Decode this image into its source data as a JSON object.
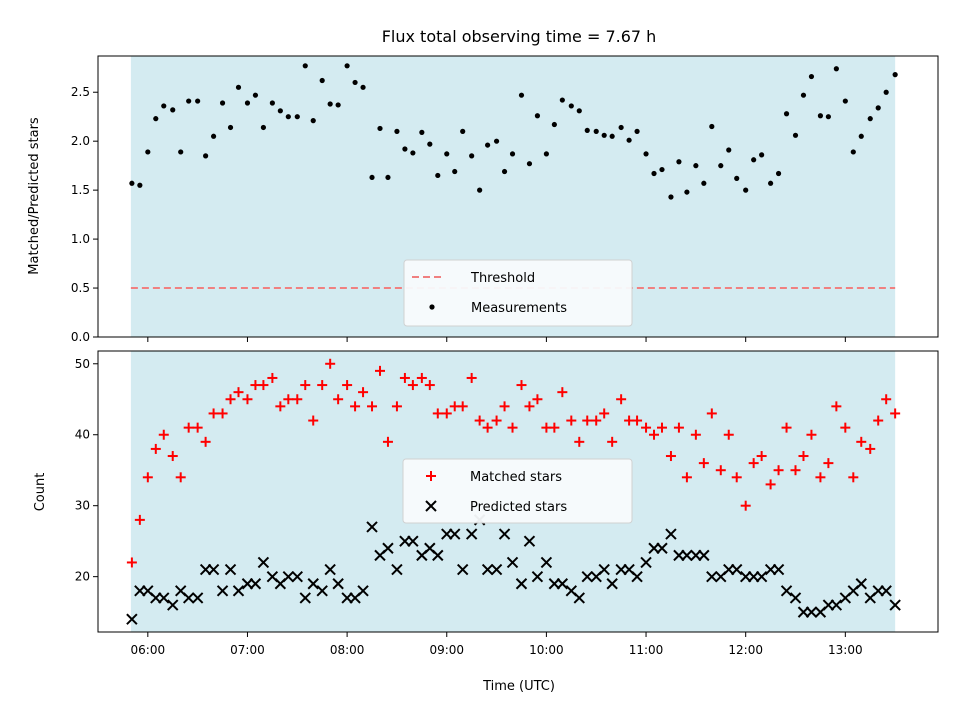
{
  "chart_data": [
    {
      "type": "scatter",
      "title": "Flux total observing time = 7.67 h",
      "ylabel": "Matched/Predicted stars",
      "xlabel": "",
      "x_ticks": [
        "06:00",
        "07:00",
        "08:00",
        "09:00",
        "10:00",
        "11:00",
        "12:00",
        "13:00"
      ],
      "y_ticks": [
        "0.0",
        "0.5",
        "1.0",
        "1.5",
        "2.0",
        "2.5"
      ],
      "ylim": [
        0,
        2.87
      ],
      "xlim_hours": [
        5.5,
        13.93
      ],
      "shaded_span_hours": [
        5.83,
        13.5
      ],
      "shade_color": "#d4ebf1",
      "threshold": {
        "name": "Threshold",
        "y": 0.5,
        "color": "#f08080"
      },
      "legend_placement": "lower-center",
      "series": [
        {
          "name": "Measurements",
          "color": "#000000",
          "x": [
            5.84,
            5.92,
            6.0,
            6.08,
            6.16,
            6.25,
            6.33,
            6.41,
            6.5,
            6.58,
            6.66,
            6.75,
            6.83,
            6.91,
            7.0,
            7.08,
            7.16,
            7.25,
            7.33,
            7.41,
            7.5,
            7.58,
            7.66,
            7.75,
            7.83,
            7.91,
            8.0,
            8.08,
            8.16,
            8.25,
            8.33,
            8.41,
            8.5,
            8.58,
            8.66,
            8.75,
            8.83,
            8.91,
            9.0,
            9.08,
            9.16,
            9.25,
            9.33,
            9.41,
            9.5,
            9.58,
            9.66,
            9.75,
            9.83,
            9.91,
            10.0,
            10.08,
            10.16,
            10.25,
            10.33,
            10.41,
            10.5,
            10.58,
            10.66,
            10.75,
            10.83,
            10.91,
            11.0,
            11.08,
            11.16,
            11.25,
            11.33,
            11.41,
            11.5,
            11.58,
            11.66,
            11.75,
            11.83,
            11.91,
            12.0,
            12.08,
            12.16,
            12.25,
            12.33,
            12.41,
            12.5,
            12.58,
            12.66,
            12.75,
            12.83,
            12.91,
            13.0,
            13.08,
            13.16,
            13.25,
            13.33,
            13.41,
            13.5
          ],
          "y": [
            1.57,
            1.55,
            1.89,
            2.23,
            2.36,
            2.32,
            1.89,
            2.41,
            2.41,
            1.85,
            2.05,
            2.39,
            2.14,
            2.55,
            2.39,
            2.47,
            2.14,
            2.39,
            2.31,
            2.25,
            2.25,
            2.77,
            2.21,
            2.62,
            2.38,
            2.37,
            2.77,
            2.6,
            2.55,
            1.63,
            2.13,
            1.63,
            2.1,
            1.92,
            1.88,
            2.09,
            1.97,
            1.65,
            1.87,
            1.69,
            2.1,
            1.85,
            1.5,
            1.96,
            2.0,
            1.69,
            1.87,
            2.47,
            1.77,
            2.26,
            1.87,
            2.17,
            2.42,
            2.36,
            2.31,
            2.11,
            2.1,
            2.06,
            2.05,
            2.14,
            2.01,
            2.1,
            1.87,
            1.67,
            1.71,
            1.43,
            1.79,
            1.48,
            1.75,
            1.57,
            2.15,
            1.75,
            1.91,
            1.62,
            1.5,
            1.81,
            1.86,
            1.57,
            1.67,
            2.28,
            2.06,
            2.47,
            2.66,
            2.26,
            2.25,
            2.74,
            2.41,
            1.89,
            2.05,
            2.23,
            2.34,
            2.5,
            2.68
          ]
        }
      ]
    },
    {
      "type": "scatter",
      "title": "",
      "ylabel": "Count",
      "xlabel": "Time (UTC)",
      "x_ticks": [
        "06:00",
        "07:00",
        "08:00",
        "09:00",
        "10:00",
        "11:00",
        "12:00",
        "13:00"
      ],
      "y_ticks": [
        "20",
        "30",
        "40",
        "50"
      ],
      "ylim": [
        12.2,
        51.8
      ],
      "xlim_hours": [
        5.5,
        13.93
      ],
      "shaded_span_hours": [
        5.83,
        13.5
      ],
      "shade_color": "#d4ebf1",
      "legend_placement": "center",
      "series": [
        {
          "name": "Matched stars",
          "marker": "+",
          "color": "#ff0000",
          "x": [
            5.84,
            5.92,
            6.0,
            6.08,
            6.16,
            6.25,
            6.33,
            6.41,
            6.5,
            6.58,
            6.66,
            6.75,
            6.83,
            6.91,
            7.0,
            7.08,
            7.16,
            7.25,
            7.33,
            7.41,
            7.5,
            7.58,
            7.66,
            7.75,
            7.83,
            7.91,
            8.0,
            8.08,
            8.16,
            8.25,
            8.33,
            8.41,
            8.5,
            8.58,
            8.66,
            8.75,
            8.83,
            8.91,
            9.0,
            9.08,
            9.16,
            9.25,
            9.33,
            9.41,
            9.5,
            9.58,
            9.66,
            9.75,
            9.83,
            9.91,
            10.0,
            10.08,
            10.16,
            10.25,
            10.33,
            10.41,
            10.5,
            10.58,
            10.66,
            10.75,
            10.83,
            10.91,
            11.0,
            11.08,
            11.16,
            11.25,
            11.33,
            11.41,
            11.5,
            11.58,
            11.66,
            11.75,
            11.83,
            11.91,
            12.0,
            12.08,
            12.16,
            12.25,
            12.33,
            12.41,
            12.5,
            12.58,
            12.66,
            12.75,
            12.83,
            12.91,
            13.0,
            13.08,
            13.16,
            13.25,
            13.33,
            13.41,
            13.5
          ],
          "y": [
            22,
            28,
            34,
            38,
            40,
            37,
            34,
            41,
            41,
            39,
            43,
            43,
            45,
            46,
            45,
            47,
            47,
            48,
            44,
            45,
            45,
            47,
            42,
            47,
            50,
            45,
            47,
            44,
            46,
            44,
            49,
            39,
            44,
            48,
            47,
            48,
            47,
            43,
            43,
            44,
            44,
            48,
            42,
            41,
            42,
            44,
            41,
            47,
            44,
            45,
            41,
            41,
            46,
            42,
            39,
            42,
            42,
            43,
            39,
            45,
            42,
            42,
            41,
            40,
            41,
            37,
            41,
            34,
            40,
            36,
            43,
            35,
            40,
            34,
            30,
            36,
            37,
            33,
            35,
            41,
            35,
            37,
            40,
            34,
            36,
            44,
            41,
            34,
            39,
            38,
            42,
            45,
            43
          ]
        },
        {
          "name": "Predicted stars",
          "marker": "x",
          "color": "#000000",
          "x": [
            5.84,
            5.92,
            6.0,
            6.08,
            6.16,
            6.25,
            6.33,
            6.41,
            6.5,
            6.58,
            6.66,
            6.75,
            6.83,
            6.91,
            7.0,
            7.08,
            7.16,
            7.25,
            7.33,
            7.41,
            7.5,
            7.58,
            7.66,
            7.75,
            7.83,
            7.91,
            8.0,
            8.08,
            8.16,
            8.25,
            8.33,
            8.41,
            8.5,
            8.58,
            8.66,
            8.75,
            8.83,
            8.91,
            9.0,
            9.08,
            9.16,
            9.25,
            9.33,
            9.41,
            9.5,
            9.58,
            9.66,
            9.75,
            9.83,
            9.91,
            10.0,
            10.08,
            10.16,
            10.25,
            10.33,
            10.41,
            10.5,
            10.58,
            10.66,
            10.75,
            10.83,
            10.91,
            11.0,
            11.08,
            11.16,
            11.25,
            11.33,
            11.41,
            11.5,
            11.58,
            11.66,
            11.75,
            11.83,
            11.91,
            12.0,
            12.08,
            12.16,
            12.25,
            12.33,
            12.41,
            12.5,
            12.58,
            12.66,
            12.75,
            12.83,
            12.91,
            13.0,
            13.08,
            13.16,
            13.25,
            13.33,
            13.41,
            13.5
          ],
          "y": [
            14,
            18,
            18,
            17,
            17,
            16,
            18,
            17,
            17,
            21,
            21,
            18,
            21,
            18,
            19,
            19,
            22,
            20,
            19,
            20,
            20,
            17,
            19,
            18,
            21,
            19,
            17,
            17,
            18,
            27,
            23,
            24,
            21,
            25,
            25,
            23,
            24,
            23,
            26,
            26,
            21,
            26,
            28,
            21,
            21,
            26,
            22,
            19,
            25,
            20,
            22,
            19,
            19,
            18,
            17,
            20,
            20,
            21,
            19,
            21,
            21,
            20,
            22,
            24,
            24,
            26,
            23,
            23,
            23,
            23,
            20,
            20,
            21,
            21,
            20,
            20,
            20,
            21,
            21,
            18,
            17,
            15,
            15,
            15,
            16,
            16,
            17,
            18,
            19,
            17,
            18,
            18,
            16
          ]
        }
      ]
    }
  ]
}
